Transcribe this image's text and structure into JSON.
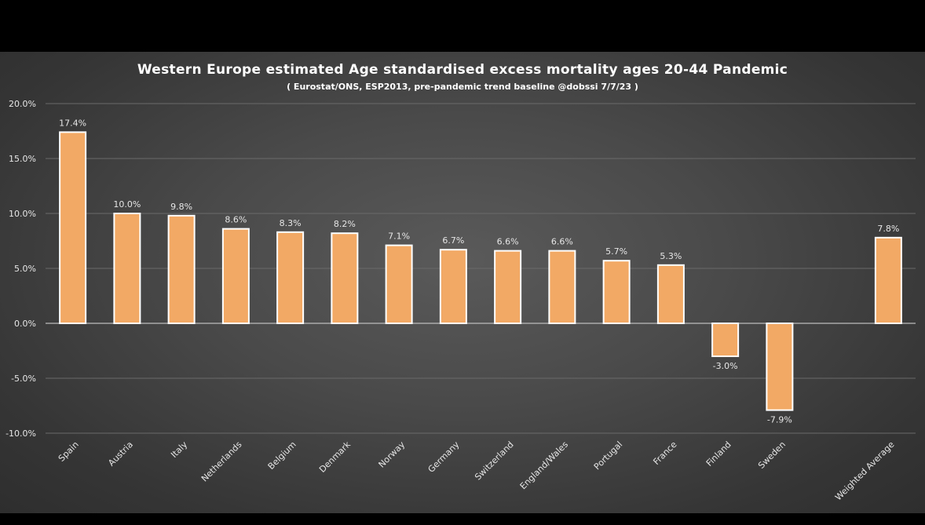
{
  "colors": {
    "background": "#000000",
    "panel": "#474747",
    "bar_fill": "#f2a965",
    "bar_stroke": "#ffffff",
    "gridline": "#6a6a6a",
    "text": "#e6e6e6"
  },
  "chart_data": {
    "type": "bar",
    "title": "Western Europe estimated Age standardised excess mortality ages 20-44 Pandemic",
    "subtitle": "( Eurostat/ONS, ESP2013, pre-pandemic trend baseline @dobssi 7/7/23  )",
    "xlabel": "",
    "ylabel": "",
    "ylim": [
      -10,
      20
    ],
    "yticks": [
      20,
      15,
      10,
      5,
      0,
      -5,
      -10
    ],
    "ytick_labels": [
      "20.0%",
      "15.0%",
      "10.0%",
      "5.0%",
      "0.0%",
      "-5.0%",
      "-10.0%"
    ],
    "grid": true,
    "legend": "none",
    "categories": [
      "Spain",
      "Austria",
      "Italy",
      "Netherlands",
      "Belgium",
      "Denmark",
      "Norway",
      "Germany",
      "Switzerland",
      "England/Wales",
      "Portugal",
      "France",
      "Finland",
      "Sweden",
      "",
      "Weighted Average"
    ],
    "values": [
      17.4,
      10.0,
      9.8,
      8.6,
      8.3,
      8.2,
      7.1,
      6.7,
      6.6,
      6.6,
      5.7,
      5.3,
      -3.0,
      -7.9,
      null,
      7.8
    ],
    "data_labels": [
      "17.4%",
      "10.0%",
      "9.8%",
      "8.6%",
      "8.3%",
      "8.2%",
      "7.1%",
      "6.7%",
      "6.6%",
      "6.6%",
      "5.7%",
      "5.3%",
      "-3.0%",
      "-7.9%",
      "",
      "7.8%"
    ]
  }
}
